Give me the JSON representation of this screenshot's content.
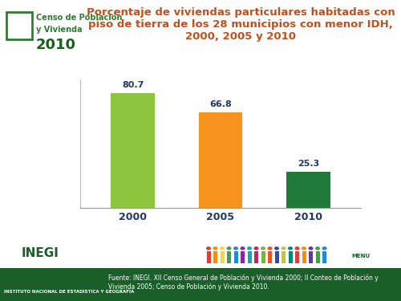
{
  "chart_data": {
    "type": "bar",
    "title": "Porcentaje de viviendas particulares habitadas con piso de tierra de los 28 municipios con menor IDH, 2000, 2005 y 2010",
    "categories": [
      "2000",
      "2005",
      "2010"
    ],
    "values": [
      80.7,
      66.8,
      25.3
    ],
    "colors": [
      "#8dc63f",
      "#f7941d",
      "#1e7b3a"
    ],
    "ylim": [
      0,
      90
    ],
    "yticks": [],
    "grid": false,
    "data_labels": true,
    "tick_labels": "x",
    "annotations": {
      "logo": [
        "Censo de Población",
        "y Vivienda",
        "2010"
      ],
      "inegi": [
        "INEGI",
        "INSTITUTO NACIONAL DE ESTADÍSTICA Y GEOGRAFÍA"
      ],
      "source": "Fuente: INEGI. XII Censo General de Población y Vivienda 2000; II Conteo de Población y Vivienda 2005; Censo de Población y Vivienda 2010.",
      "menu": "MENU"
    }
  }
}
